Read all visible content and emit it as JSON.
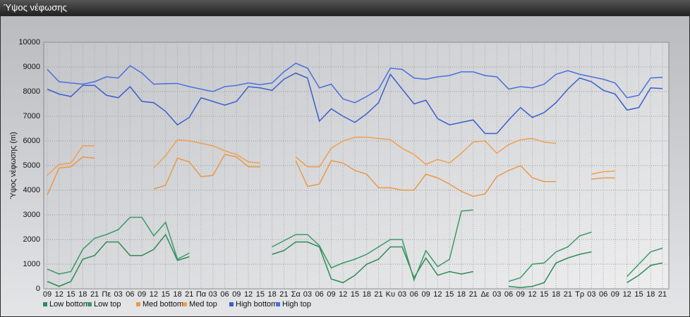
{
  "window_title": "Ύψος νέφωσης",
  "chart_data": {
    "type": "line",
    "ylabel": "Ύψος νέφωσης (m)",
    "categories": [
      "09",
      "12",
      "15",
      "18",
      "21",
      "Πε",
      "03",
      "06",
      "09",
      "12",
      "15",
      "18",
      "21",
      "Πα",
      "03",
      "06",
      "09",
      "12",
      "15",
      "18",
      "21",
      "Σα",
      "03",
      "06",
      "09",
      "12",
      "15",
      "18",
      "21",
      "Κυ",
      "03",
      "06",
      "09",
      "12",
      "15",
      "18",
      "21",
      "Δε",
      "03",
      "06",
      "09",
      "12",
      "15",
      "18",
      "21",
      "Τρ",
      "03",
      "06",
      "09",
      "12",
      "15",
      "18",
      "21"
    ],
    "ylim": [
      0,
      10000
    ],
    "yticks": [
      0,
      1000,
      2000,
      3000,
      4000,
      5000,
      6000,
      7000,
      8000,
      9000,
      10000
    ],
    "grid": true,
    "series": [
      {
        "name": "Low bottom",
        "color": "#2e8b57",
        "values": [
          300,
          100,
          300,
          1200,
          1350,
          1900,
          1900,
          1350,
          1350,
          1600,
          2200,
          1150,
          1300,
          null,
          null,
          null,
          null,
          null,
          null,
          1400,
          1550,
          1900,
          1900,
          1700,
          400,
          250,
          550,
          1000,
          1200,
          1700,
          1700,
          450,
          1250,
          550,
          700,
          600,
          700,
          null,
          null,
          100,
          50,
          100,
          250,
          1050,
          1250,
          1400,
          1500,
          null,
          null,
          250,
          550,
          950,
          1050
        ]
      },
      {
        "name": "Low top",
        "color": "#3a9a68",
        "values": [
          800,
          600,
          700,
          1600,
          2050,
          2200,
          2400,
          2900,
          2900,
          2150,
          2700,
          1200,
          1450,
          null,
          null,
          null,
          null,
          null,
          null,
          1700,
          1950,
          2200,
          2200,
          1750,
          850,
          1050,
          1200,
          1400,
          1700,
          2000,
          2000,
          350,
          1550,
          900,
          1200,
          3150,
          3200,
          null,
          null,
          300,
          450,
          1000,
          1050,
          1500,
          1700,
          2150,
          2300,
          null,
          null,
          500,
          1000,
          1500,
          1650
        ]
      },
      {
        "name": "Med bottom",
        "color": "#e89a4a",
        "values": [
          3800,
          4900,
          4950,
          5350,
          5300,
          null,
          null,
          null,
          null,
          4050,
          4200,
          5300,
          5150,
          4550,
          4600,
          5450,
          5350,
          4950,
          4950,
          null,
          null,
          5200,
          4150,
          4250,
          5200,
          5100,
          4800,
          4650,
          4100,
          4100,
          4000,
          4000,
          4650,
          4500,
          4250,
          3950,
          3750,
          3850,
          4550,
          4800,
          5000,
          4500,
          4350,
          4350,
          null,
          null,
          4450,
          4500,
          4500,
          null,
          null,
          null,
          null
        ]
      },
      {
        "name": "Med top",
        "color": "#f0a050",
        "values": [
          4600,
          5050,
          5100,
          5800,
          5800,
          null,
          null,
          null,
          null,
          4900,
          5400,
          6050,
          6000,
          5900,
          5800,
          5600,
          5450,
          5150,
          5100,
          null,
          null,
          5350,
          4950,
          4950,
          5700,
          6000,
          6150,
          6150,
          6100,
          6050,
          5700,
          5450,
          5050,
          5250,
          5100,
          5500,
          5950,
          6000,
          5500,
          5850,
          6050,
          6100,
          5950,
          5900,
          null,
          null,
          4650,
          4750,
          4780,
          null,
          null,
          null,
          null
        ]
      },
      {
        "name": "High bottom",
        "color": "#3a5fcd",
        "values": [
          8100,
          7900,
          7800,
          8250,
          8250,
          7850,
          7750,
          8200,
          7600,
          7550,
          7200,
          6650,
          6950,
          7750,
          7600,
          7450,
          7600,
          8200,
          8150,
          8050,
          8500,
          8750,
          8550,
          6800,
          7300,
          7000,
          6750,
          7100,
          7550,
          8700,
          8100,
          7500,
          7650,
          6900,
          6650,
          6750,
          6850,
          6300,
          6300,
          6850,
          7350,
          6950,
          7150,
          7550,
          8100,
          8550,
          8400,
          8050,
          7900,
          7250,
          7350,
          8150,
          8120
        ]
      },
      {
        "name": "High top",
        "color": "#4a6fdc",
        "values": [
          8900,
          8400,
          8350,
          8300,
          8400,
          8600,
          8550,
          9050,
          8750,
          8300,
          8320,
          8330,
          8200,
          8100,
          8000,
          8200,
          8250,
          8350,
          8280,
          8350,
          8800,
          9150,
          8950,
          8150,
          8300,
          7700,
          7550,
          7800,
          8100,
          8950,
          8900,
          8550,
          8500,
          8600,
          8650,
          8800,
          8800,
          8650,
          8600,
          8100,
          8200,
          8150,
          8300,
          8700,
          8850,
          8700,
          8600,
          8500,
          8350,
          7750,
          7850,
          8550,
          8580
        ]
      }
    ]
  }
}
